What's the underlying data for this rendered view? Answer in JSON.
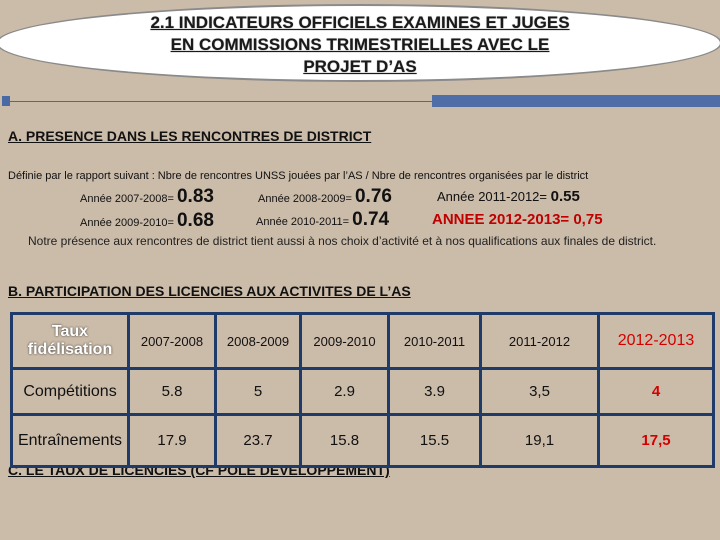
{
  "title": {
    "lines": [
      "2.1 INDICATEURS OFFICIELS EXAMINES ET JUGES",
      "EN COMMISSIONS TRIMESTRIELLES AVEC LE",
      "PROJET D’AS"
    ]
  },
  "section_a": {
    "heading": "A. PRESENCE DANS LES RENCONTRES DE DISTRICT",
    "definition": "Définie par le rapport suivant : Nbre de rencontres UNSS jouées par l’AS / Nbre de rencontres organisées par le district",
    "years": [
      {
        "label": "Année 2007-2008=",
        "value": "0.83"
      },
      {
        "label": "Année 2008-2009=",
        "value": "0.76"
      },
      {
        "label": "Année 2011-2012=",
        "value": "0.55"
      },
      {
        "label": "Année 2009-2010=",
        "value": "0.68"
      },
      {
        "label": "Année 2010-2011=",
        "value": "0.74"
      }
    ],
    "current": "ANNEE 2012-2013= 0,75",
    "note": "Notre présence aux rencontres de district tient aussi à nos choix d’activité et à nos qualifications aux finales de district."
  },
  "section_b": {
    "heading": "B. PARTICIPATION DES LICENCIES AUX ACTIVITES DE L’AS",
    "table": {
      "header": [
        "Taux fidélisation",
        "2007-2008",
        "2008-2009",
        "2009-2010",
        "2010-2011",
        "2011-2012",
        "2012-2013"
      ],
      "rows": [
        [
          "Compétitions",
          "5.8",
          "5",
          "2.9",
          "3.9",
          "3,5",
          "4"
        ],
        [
          "Entraînements",
          "17.9",
          "23.7",
          "15.8",
          "15.5",
          "19,1",
          "17,5"
        ]
      ]
    }
  },
  "section_c": {
    "heading": "C. LE TAUX DE LICENCIES (CF POLE DEVELOPPEMENT)"
  }
}
